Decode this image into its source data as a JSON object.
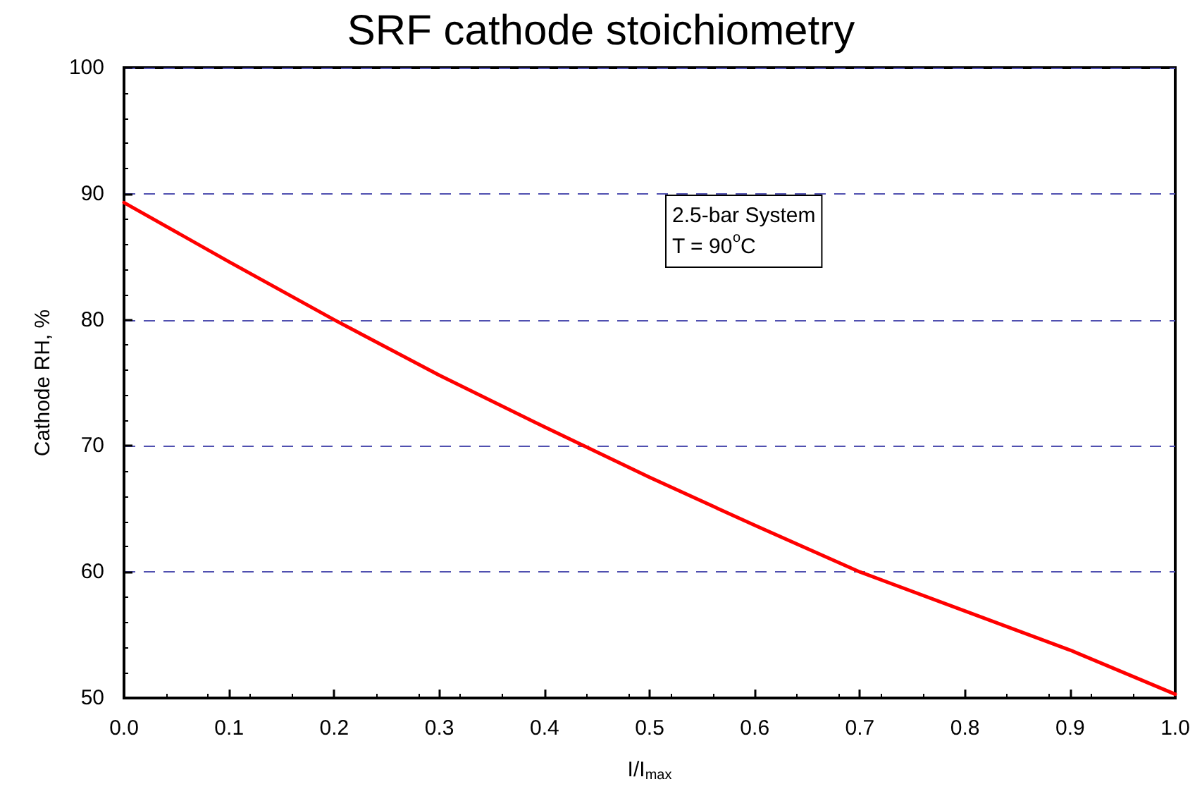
{
  "chart_data": {
    "type": "line",
    "title": "SRF cathode stoichiometry",
    "xlabel": "I/I$_{max}$",
    "ylabel": "Cathode RH, %",
    "annotations": [
      "2.5-bar System\nT = 90$^{o}$C"
    ],
    "x": [
      0,
      0.1,
      0.2,
      0.3,
      0.4,
      0.5,
      0.6,
      0.7,
      0.8,
      0.9,
      1.0
    ],
    "series": [
      {
        "color": "#ff0000",
        "values": [
          89.3,
          84.6,
          80.0,
          75.6,
          71.5,
          67.5,
          63.7,
          60.0,
          56.9,
          53.8,
          50.3
        ]
      }
    ],
    "xlim": [
      0,
      1
    ],
    "xticks": [
      {
        "value": 0,
        "label": "0.0"
      },
      0.1,
      0.2,
      0.3,
      0.4,
      0.5,
      0.6,
      0.7,
      0.8,
      0.9,
      {
        "value": 1,
        "label": "1.0"
      }
    ],
    "ylim": [
      50,
      100
    ],
    "yticks": [
      50,
      60,
      70,
      80,
      90,
      100
    ],
    "grid": "y",
    "marker": "none",
    "line_style": "solid"
  }
}
